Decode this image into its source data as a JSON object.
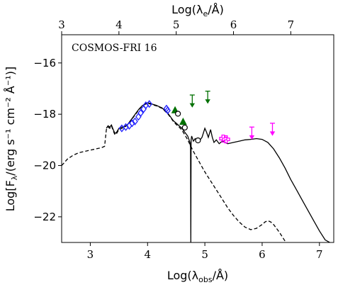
{
  "chart_data": {
    "type": "scatter",
    "annotation": "COSMOS-FRI 16",
    "xlabel": "Log(λ",
    "xlabel_sub": "obs",
    "xlabel_end": "/Å)",
    "xlabel_top": "Log(λ",
    "xlabel_top_sub": "e",
    "xlabel_top_end": "/Å)",
    "ylabel": "Log[F",
    "ylabel_sub": "λ",
    "ylabel_end": "/(erg s⁻¹ cm⁻² Å⁻¹)]",
    "xlim": [
      2.5,
      7.25
    ],
    "ylim": [
      -23.0,
      -14.9
    ],
    "top_offset": 0.5,
    "xticks_bottom": [
      3,
      4,
      5,
      6,
      7
    ],
    "xticks_top": [
      3,
      4,
      5,
      6,
      7
    ],
    "yticks": [
      -22,
      -20,
      -18,
      -16
    ],
    "ytick_labels": [
      "−22",
      "−20",
      "−18",
      "−16"
    ],
    "series": [
      {
        "role": "total-model",
        "style": "solid",
        "color": "#000000",
        "x": [
          3.28,
          3.31,
          3.34,
          3.37,
          3.4,
          3.43,
          3.46,
          3.5,
          3.55,
          3.6,
          3.65,
          3.7,
          3.75,
          3.8,
          3.85,
          3.9,
          3.95,
          4.0,
          4.05,
          4.1,
          4.15,
          4.2,
          4.25,
          4.3,
          4.35,
          4.4,
          4.45,
          4.5,
          4.55,
          4.6,
          4.65,
          4.7,
          4.74,
          4.75,
          4.755,
          4.76,
          4.77,
          4.8,
          4.83,
          4.85,
          4.88,
          4.9,
          4.95,
          5.0,
          5.03,
          5.06,
          5.1,
          5.13,
          5.16,
          5.2,
          5.25,
          5.3,
          5.35,
          5.4,
          5.5,
          5.6,
          5.7,
          5.8,
          5.9,
          6.0,
          6.1,
          6.2,
          6.3,
          6.4,
          6.5,
          6.6,
          6.7,
          6.8,
          6.9,
          7.0,
          7.1,
          7.18
        ],
        "y": [
          -18.55,
          -18.45,
          -18.5,
          -18.42,
          -18.6,
          -18.75,
          -18.7,
          -18.55,
          -18.5,
          -18.48,
          -18.4,
          -18.25,
          -18.1,
          -17.95,
          -17.8,
          -17.68,
          -17.6,
          -17.55,
          -17.58,
          -17.62,
          -17.65,
          -17.7,
          -17.75,
          -17.85,
          -17.95,
          -18.1,
          -18.25,
          -18.35,
          -18.45,
          -18.55,
          -18.7,
          -18.85,
          -19.1,
          -19.3,
          -23.0,
          -19.0,
          -18.85,
          -19.05,
          -18.95,
          -19.0,
          -19.1,
          -19.05,
          -18.9,
          -18.55,
          -18.7,
          -18.9,
          -18.6,
          -18.9,
          -19.1,
          -19.0,
          -19.15,
          -19.05,
          -19.1,
          -19.15,
          -19.1,
          -19.05,
          -19.0,
          -18.98,
          -18.95,
          -18.98,
          -19.1,
          -19.35,
          -19.7,
          -20.1,
          -20.55,
          -20.95,
          -21.35,
          -21.75,
          -22.15,
          -22.55,
          -22.9,
          -23.0
        ]
      },
      {
        "role": "second-model",
        "style": "dashed",
        "color": "#000000",
        "x": [
          2.5,
          2.6,
          2.7,
          2.8,
          2.9,
          3.0,
          3.1,
          3.2,
          3.25,
          3.28,
          3.31,
          3.34,
          3.37,
          3.4,
          3.43,
          3.46,
          3.5,
          3.55,
          3.6,
          3.65,
          3.7,
          3.75,
          3.8,
          3.85,
          3.9,
          3.95,
          4.0,
          4.05,
          4.1,
          4.15,
          4.2,
          4.25,
          4.3,
          4.35,
          4.4,
          4.45,
          4.5,
          4.55,
          4.6,
          4.65,
          4.7,
          4.8,
          4.9,
          5.0,
          5.1,
          5.2,
          5.3,
          5.4,
          5.5,
          5.6,
          5.7,
          5.8,
          5.9,
          6.0,
          6.05,
          6.1,
          6.15,
          6.2,
          6.3,
          6.4,
          6.5,
          6.6,
          6.7
        ],
        "y": [
          -20.0,
          -19.75,
          -19.6,
          -19.5,
          -19.45,
          -19.4,
          -19.35,
          -19.3,
          -19.25,
          -18.6,
          -18.5,
          -18.55,
          -18.45,
          -18.65,
          -18.8,
          -18.75,
          -18.6,
          -18.55,
          -18.5,
          -18.42,
          -18.28,
          -18.12,
          -17.97,
          -17.82,
          -17.7,
          -17.62,
          -17.57,
          -17.6,
          -17.64,
          -17.67,
          -17.72,
          -17.77,
          -17.87,
          -17.98,
          -18.12,
          -18.28,
          -18.4,
          -18.5,
          -18.62,
          -18.8,
          -19.0,
          -19.45,
          -19.85,
          -20.25,
          -20.6,
          -20.95,
          -21.3,
          -21.65,
          -21.95,
          -22.2,
          -22.4,
          -22.5,
          -22.45,
          -22.3,
          -22.2,
          -22.15,
          -22.2,
          -22.3,
          -22.6,
          -22.95,
          -23.3,
          -23.65,
          -24.0
        ]
      }
    ],
    "points": [
      {
        "role": "detections",
        "marker": "diamond-open",
        "color": "#1f1fff",
        "x": [
          3.55,
          3.62,
          3.68,
          3.73,
          3.78,
          3.84,
          3.88,
          3.93,
          3.97,
          4.03
        ],
        "y": [
          -18.55,
          -18.5,
          -18.45,
          -18.35,
          -18.28,
          -18.1,
          -17.95,
          -17.8,
          -17.65,
          -17.6
        ]
      },
      {
        "role": "detections",
        "marker": "diamond-open",
        "color": "#1f1fff",
        "x": [
          4.33,
          4.35
        ],
        "y": [
          -17.78,
          -17.85
        ]
      },
      {
        "role": "detections",
        "marker": "triangle-filled",
        "color": "#007000",
        "x": [
          4.48,
          4.62
        ],
        "y": [
          -17.85,
          -18.3
        ]
      },
      {
        "role": "detections",
        "marker": "circle-open",
        "color": "#000000",
        "x": [
          4.53,
          4.65,
          4.88
        ],
        "y": [
          -17.98,
          -18.52,
          -19.02
        ]
      },
      {
        "role": "detections",
        "marker": "plus-open",
        "color": "#ff00ff",
        "x": [
          5.32,
          5.37
        ],
        "y": [
          -18.95,
          -18.98
        ]
      }
    ],
    "upper_limits": [
      {
        "color": "#007000",
        "x": [
          4.78,
          5.05
        ],
        "y": [
          -17.25,
          -17.1
        ]
      },
      {
        "color": "#ff00ff",
        "x": [
          5.82,
          6.18
        ],
        "y": [
          -18.5,
          -18.35
        ]
      }
    ]
  }
}
